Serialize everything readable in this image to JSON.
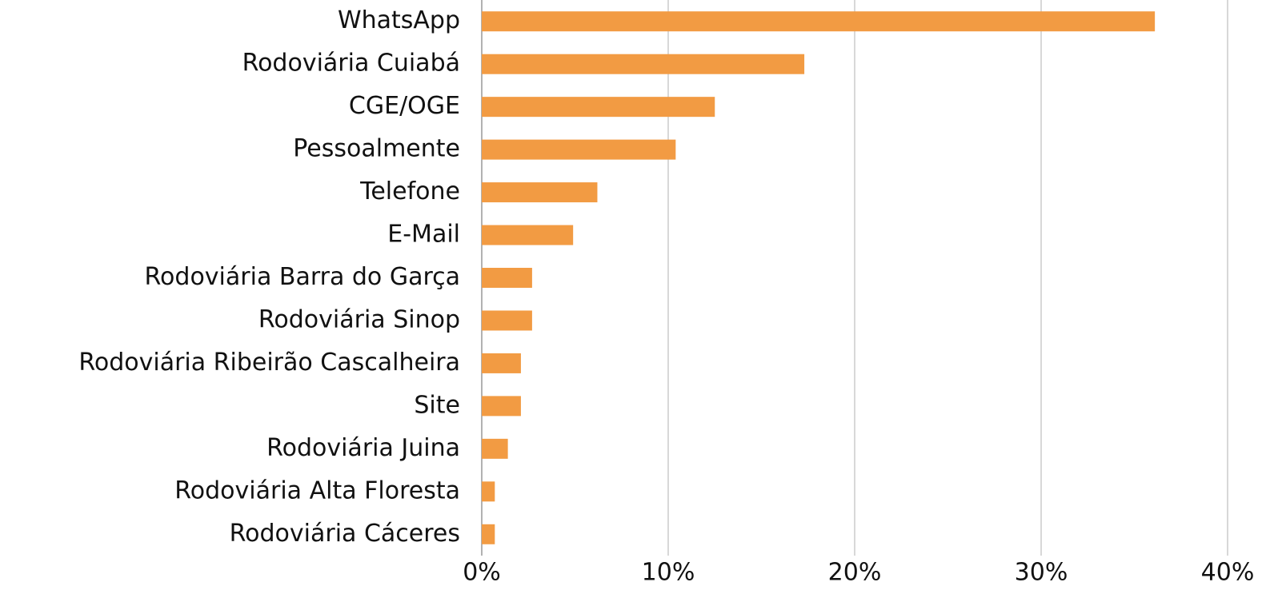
{
  "chart_data": {
    "type": "barh",
    "categories": [
      "WhatsApp",
      "Rodoviária Cuiabá",
      "CGE/OGE",
      "Pessoalmente",
      "Telefone",
      "E-Mail",
      "Rodoviária Barra do Garça",
      "Rodoviária Sinop",
      "Rodoviária Ribeirão Cascalheira",
      "Site",
      "Rodoviária Juina",
      "Rodoviária Alta Floresta",
      "Rodoviária Cáceres"
    ],
    "values": [
      36.1,
      17.3,
      12.5,
      10.4,
      6.2,
      4.9,
      2.7,
      2.7,
      2.1,
      2.1,
      1.4,
      0.7,
      0.7
    ],
    "color": "#f29b43",
    "xlim": [
      0,
      40
    ],
    "xticks": [
      {
        "value": 0,
        "label": "0%"
      },
      {
        "value": 10,
        "label": "10%"
      },
      {
        "value": 20,
        "label": "20%"
      },
      {
        "value": 30,
        "label": "30%"
      },
      {
        "value": 40,
        "label": "40%"
      }
    ],
    "grid": true
  }
}
